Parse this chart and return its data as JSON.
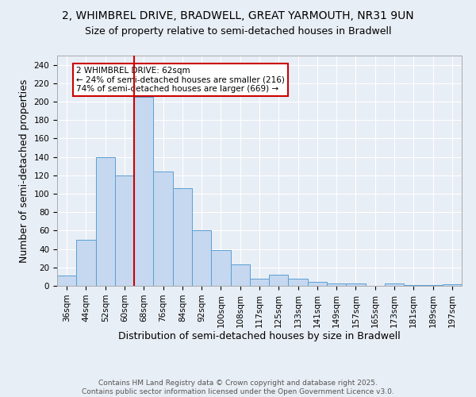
{
  "title_line1": "2, WHIMBREL DRIVE, BRADWELL, GREAT YARMOUTH, NR31 9UN",
  "title_line2": "Size of property relative to semi-detached houses in Bradwell",
  "categories": [
    "36sqm",
    "44sqm",
    "52sqm",
    "60sqm",
    "68sqm",
    "76sqm",
    "84sqm",
    "92sqm",
    "100sqm",
    "108sqm",
    "117sqm",
    "125sqm",
    "133sqm",
    "141sqm",
    "149sqm",
    "157sqm",
    "165sqm",
    "173sqm",
    "181sqm",
    "189sqm",
    "197sqm"
  ],
  "values": [
    11,
    50,
    140,
    120,
    205,
    124,
    106,
    60,
    39,
    23,
    8,
    12,
    8,
    4,
    3,
    3,
    0,
    3,
    1,
    1,
    2
  ],
  "bar_color": "#c5d8f0",
  "bar_edge_color": "#5a9fd4",
  "bar_width": 1.0,
  "xlabel": "Distribution of semi-detached houses by size in Bradwell",
  "ylabel": "Number of semi-detached properties",
  "ylim": [
    0,
    250
  ],
  "yticks": [
    0,
    20,
    40,
    60,
    80,
    100,
    120,
    140,
    160,
    180,
    200,
    220,
    240
  ],
  "vline_x_index": 3,
  "vline_color": "#cc0000",
  "annotation_text": "2 WHIMBREL DRIVE: 62sqm\n← 24% of semi-detached houses are smaller (216)\n74% of semi-detached houses are larger (669) →",
  "box_color": "#ffffff",
  "box_edge_color": "#cc0000",
  "background_color": "#e8eef5",
  "footer_text": "Contains HM Land Registry data © Crown copyright and database right 2025.\nContains public sector information licensed under the Open Government Licence v3.0.",
  "title_fontsize": 10,
  "subtitle_fontsize": 9,
  "axis_label_fontsize": 9,
  "tick_fontsize": 7.5,
  "annotation_fontsize": 7.5,
  "footer_fontsize": 6.5
}
